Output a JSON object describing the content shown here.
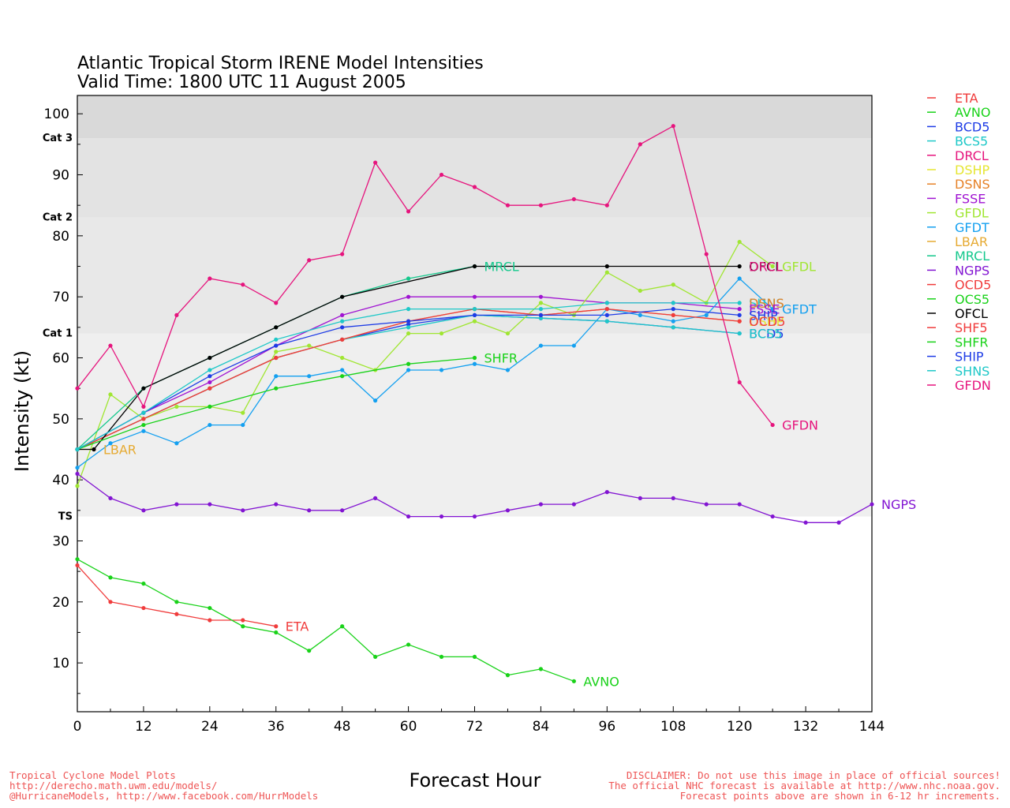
{
  "footer": {
    "left": [
      "Tropical Cyclone Model Plots",
      "http://derecho.math.uwm.edu/models/",
      "@HurricaneModels, http://www.facebook.com/HurrModels"
    ],
    "right": [
      "DISCLAIMER: Do not use this image in place of official sources!",
      "The official NHC forecast is available at http://www.nhc.noaa.gov.",
      "Forecast points above are shown in 6-12 hr increments."
    ]
  },
  "chart_data": {
    "type": "line",
    "title": "Atlantic Tropical Storm IRENE Model Intensities",
    "subtitle": "Valid Time: 1800 UTC 11 August 2005",
    "xlabel": "Forecast Hour",
    "ylabel": "Intensity (kt)",
    "xlim": [
      0,
      144
    ],
    "ylim": [
      2,
      103
    ],
    "xticks": [
      0,
      12,
      24,
      36,
      48,
      60,
      72,
      84,
      96,
      108,
      120,
      132,
      144
    ],
    "yticks": [
      10,
      20,
      30,
      40,
      50,
      60,
      70,
      80,
      90,
      100
    ],
    "grid": false,
    "legend": "right",
    "categories": [
      {
        "label": "TS",
        "min": 34,
        "max": 64,
        "color": "#efefef"
      },
      {
        "label": "Cat 1",
        "min": 64,
        "max": 83,
        "color": "#e8e8e8"
      },
      {
        "label": "Cat 2",
        "min": 83,
        "max": 96,
        "color": "#e3e3e3"
      },
      {
        "label": "Cat 3",
        "min": 96,
        "max": 103,
        "color": "#d9d9d9"
      }
    ],
    "series": [
      {
        "name": "ETA",
        "color": "#f03c3c",
        "x": [
          0,
          6,
          12,
          18,
          24,
          30,
          36
        ],
        "y": [
          26,
          20,
          19,
          18,
          17,
          17,
          16
        ]
      },
      {
        "name": "AVNO",
        "color": "#19d219",
        "x": [
          0,
          6,
          12,
          18,
          24,
          30,
          36,
          42,
          48,
          54,
          60,
          66,
          72,
          78,
          84,
          90
        ],
        "y": [
          27,
          24,
          23,
          20,
          19,
          16,
          15,
          12,
          16,
          11,
          13,
          11,
          11,
          8,
          9,
          7
        ]
      },
      {
        "name": "BCD5",
        "color": "#1e3ce6",
        "x": [
          0,
          12,
          24,
          36,
          48,
          60,
          72,
          84,
          96,
          108,
          120
        ],
        "y": [
          45,
          50,
          55,
          60,
          63,
          65.5,
          67,
          66.5,
          66,
          65,
          64
        ]
      },
      {
        "name": "BCS5",
        "color": "#1ec8c8",
        "x": [
          0,
          12,
          24,
          36,
          48,
          60,
          72,
          84,
          96,
          108,
          120
        ],
        "y": [
          45,
          50,
          55,
          60,
          63,
          65,
          67,
          66.5,
          66,
          65,
          64
        ]
      },
      {
        "name": "DRCL",
        "color": "#e6147d",
        "x": [],
        "y": []
      },
      {
        "name": "DSHP",
        "color": "#e6e632",
        "x": [],
        "y": []
      },
      {
        "name": "DSNS",
        "color": "#e68228",
        "x": [
          0,
          12,
          24,
          36,
          48,
          60,
          72,
          84,
          96,
          108,
          120
        ],
        "y": [
          45,
          50,
          55,
          60,
          63,
          66,
          68,
          67,
          68,
          67,
          66
        ]
      },
      {
        "name": "FSSE",
        "color": "#a014d2",
        "x": [
          0,
          12,
          24,
          36,
          48,
          60,
          72,
          84,
          96,
          108,
          120
        ],
        "y": [
          45,
          51,
          56,
          62,
          67,
          70,
          70,
          70,
          69,
          69,
          68
        ]
      },
      {
        "name": "GFDL",
        "color": "#a0e632",
        "x": [
          0,
          6,
          12,
          18,
          24,
          30,
          36,
          42,
          48,
          54,
          60,
          66,
          72,
          78,
          84,
          90,
          96,
          102,
          108,
          114,
          120,
          126
        ],
        "y": [
          39,
          54,
          50,
          52,
          52,
          51,
          61,
          62,
          60,
          58,
          64,
          64,
          66,
          64,
          69,
          67,
          74,
          71,
          72,
          69,
          79,
          75
        ]
      },
      {
        "name": "GFDT",
        "color": "#14a0f0",
        "x": [
          0,
          6,
          12,
          18,
          24,
          30,
          36,
          42,
          48,
          54,
          60,
          66,
          72,
          78,
          84,
          90,
          96,
          102,
          108,
          114,
          120,
          126
        ],
        "y": [
          42,
          46,
          48,
          46,
          49,
          49,
          57,
          57,
          58,
          53,
          58,
          58,
          59,
          58,
          62,
          62,
          68,
          67,
          66,
          67,
          73,
          68
        ]
      },
      {
        "name": "LBAR",
        "color": "#e6aa32",
        "x": [
          0,
          3
        ],
        "y": [
          45,
          45
        ]
      },
      {
        "name": "MRCL",
        "color": "#14c88c",
        "x": [
          0,
          12,
          24,
          36,
          48,
          60,
          72
        ],
        "y": [
          45,
          55,
          60,
          65,
          70,
          73,
          75
        ]
      },
      {
        "name": "NGPS",
        "color": "#8214d2",
        "x": [
          0,
          6,
          12,
          18,
          24,
          30,
          36,
          42,
          48,
          54,
          60,
          66,
          72,
          78,
          84,
          90,
          96,
          102,
          108,
          114,
          120,
          126,
          132,
          138,
          144
        ],
        "y": [
          41,
          37,
          35,
          36,
          36,
          35,
          36,
          35,
          35,
          37,
          34,
          34,
          34,
          35,
          36,
          36,
          38,
          37,
          37,
          36,
          36,
          34,
          33,
          33,
          36
        ]
      },
      {
        "name": "OCD5",
        "color": "#f03c3c",
        "x": [
          0,
          12,
          24,
          36,
          48,
          60,
          72,
          84,
          96,
          108,
          120
        ],
        "y": [
          45,
          50,
          55,
          60,
          63,
          66,
          68,
          67,
          68,
          67,
          66
        ]
      },
      {
        "name": "OCS5",
        "color": "#19d219",
        "x": [],
        "y": []
      },
      {
        "name": "OFCL",
        "color": "#000000",
        "x": [
          0,
          3,
          12,
          24,
          36,
          48,
          72,
          96,
          120
        ],
        "y": [
          45,
          45,
          55,
          60,
          65,
          70,
          75,
          75,
          75
        ]
      },
      {
        "name": "SHF5",
        "color": "#f03c3c",
        "x": [],
        "y": []
      },
      {
        "name": "SHFR",
        "color": "#19d219",
        "x": [
          0,
          12,
          24,
          36,
          48,
          60,
          72
        ],
        "y": [
          45,
          49,
          52,
          55,
          57,
          59,
          60
        ]
      },
      {
        "name": "SHIP",
        "color": "#1e3ce6",
        "x": [
          0,
          12,
          24,
          36,
          48,
          60,
          72,
          84,
          96,
          108,
          120
        ],
        "y": [
          45,
          51,
          57,
          62,
          65,
          66,
          67,
          67,
          67,
          68,
          67
        ]
      },
      {
        "name": "SHNS",
        "color": "#1ec8c8",
        "x": [
          0,
          12,
          24,
          36,
          48,
          60,
          72,
          84,
          96,
          108,
          120
        ],
        "y": [
          45,
          51,
          58,
          63,
          66,
          68,
          68,
          68,
          69,
          69,
          69
        ]
      },
      {
        "name": "GFDN",
        "color": "#e6147d",
        "x": [
          0,
          6,
          12,
          18,
          24,
          30,
          36,
          42,
          48,
          54,
          60,
          66,
          72,
          78,
          84,
          90,
          96,
          102,
          108,
          114,
          120,
          126
        ],
        "y": [
          55,
          62,
          52,
          67,
          73,
          72,
          69,
          76,
          77,
          92,
          84,
          90,
          88,
          85,
          85,
          86,
          85,
          95,
          98,
          77,
          56,
          49
        ]
      }
    ],
    "labels": [
      {
        "text": "ETA",
        "series": "ETA",
        "x": 36,
        "y": 16
      },
      {
        "text": "AVNO",
        "series": "AVNO",
        "x": 90,
        "y": 7
      },
      {
        "text": "LBAR",
        "series": "LBAR",
        "x": 3,
        "y": 45
      },
      {
        "text": "MRCL",
        "series": "MRCL",
        "x": 72,
        "y": 75
      },
      {
        "text": "SHFR",
        "series": "SHFR",
        "x": 72,
        "y": 60
      },
      {
        "text": "NGPS",
        "series": "NGPS",
        "x": 144,
        "y": 36
      },
      {
        "text": "GFDN",
        "series": "GFDN",
        "x": 126,
        "y": 49
      },
      {
        "text": "OFCL",
        "series": "OFCL",
        "x": 120,
        "y": 75
      },
      {
        "text": "DRCL",
        "series": "DRCL",
        "x": 120,
        "y": 75
      },
      {
        "text": "GFDL",
        "series": "GFDL",
        "x": 126,
        "y": 75
      },
      {
        "text": "GFDT",
        "series": "GFDT",
        "x": 126,
        "y": 68
      },
      {
        "text": "SHNS",
        "series": "SHNS",
        "x": 120,
        "y": 69
      },
      {
        "text": "DSNS",
        "series": "DSNS",
        "x": 120,
        "y": 69
      },
      {
        "text": "FSSE",
        "series": "FSSE",
        "x": 120,
        "y": 68
      },
      {
        "text": "SHIP",
        "series": "SHIP",
        "x": 120,
        "y": 67
      },
      {
        "text": "DSHP",
        "series": "DSHP",
        "x": 120,
        "y": 66
      },
      {
        "text": "OCD5",
        "series": "OCD5",
        "x": 120,
        "y": 66
      },
      {
        "text": "BCD5",
        "series": "BCD5",
        "x": 120,
        "y": 64
      },
      {
        "text": "BCS5",
        "series": "BCS5",
        "x": 120,
        "y": 64
      }
    ]
  }
}
